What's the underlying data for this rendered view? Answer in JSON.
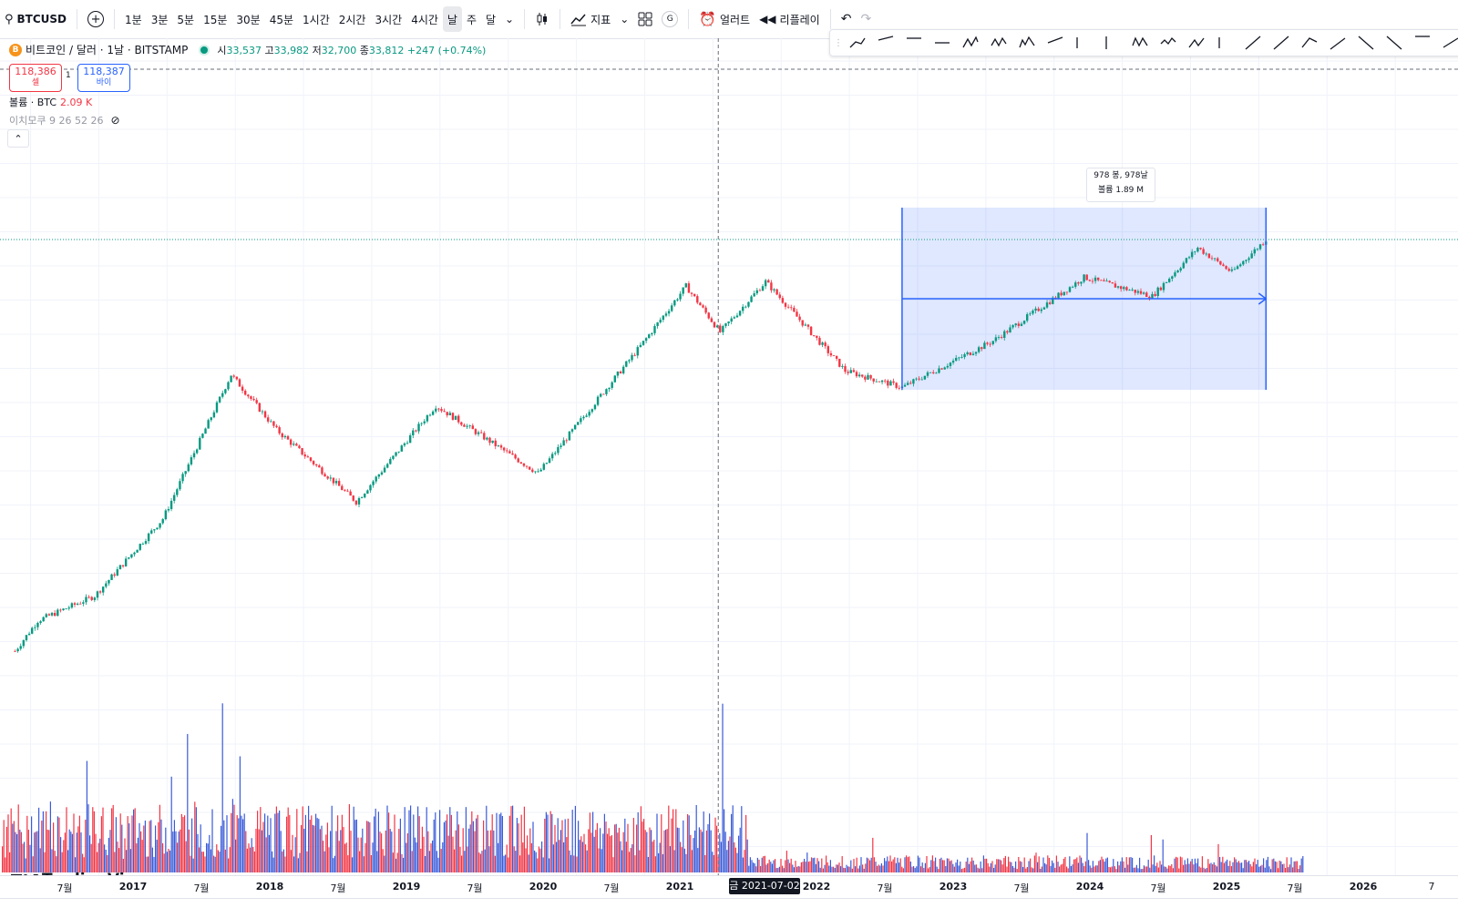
{
  "toolbar": {
    "symbol": "BTCUSD",
    "intervals": [
      "1분",
      "3분",
      "5분",
      "15분",
      "30분",
      "45분",
      "1시간",
      "2시간",
      "3시간",
      "4시간",
      "날",
      "주",
      "달"
    ],
    "active_interval": "날",
    "indicators": "지표",
    "alert": "얼러트",
    "replay": "리플레이"
  },
  "legend": {
    "title": "비트코인 / 달러 · 1날 · BITSTAMP",
    "o_label": "시",
    "o": "33,537",
    "h_label": "고",
    "h": "33,982",
    "l_label": "저",
    "l": "32,700",
    "c_label": "종",
    "c": "33,812",
    "change": "+247 (+0.74%)"
  },
  "trade": {
    "sell_price": "118,386",
    "sell_label": "셀",
    "spread": "1",
    "buy_price": "118,387",
    "buy_label": "바이"
  },
  "volume": {
    "label": "볼륨 · BTC",
    "value": "2.09 K"
  },
  "ichimoku": {
    "label": "이치모쿠 9 26 52 26"
  },
  "measure": {
    "line1": "978 봉, 978날",
    "line2": "볼륨 1.89 M"
  },
  "xaxis": {
    "labels": [
      "7월",
      "2017",
      "7월",
      "2018",
      "7월",
      "2019",
      "7월",
      "2020",
      "7월",
      "2021",
      "2022",
      "7월",
      "2023",
      "7월",
      "2024",
      "7월",
      "2025",
      "7월",
      "2026",
      "7"
    ],
    "crosshair": "금 2021-07-02"
  },
  "watermark": "TradingView",
  "colors": {
    "up": "#089981",
    "down": "#f23645",
    "accent": "#2962ff",
    "vol_up": "#3a5bd9",
    "vol_down": "#f23645"
  },
  "chart_data": {
    "type": "candlestick",
    "symbol": "BTCUSD",
    "interval": "1날",
    "x_range": [
      "2016-04",
      "2026-10"
    ],
    "y_scale": "log",
    "path_dates": [
      "2016-05",
      "2016-07",
      "2016-12",
      "2017-06",
      "2017-12",
      "2018-04",
      "2018-11",
      "2019-06",
      "2020-03",
      "2020-12",
      "2021-04",
      "2021-07",
      "2021-11",
      "2022-06",
      "2022-11",
      "2023-07",
      "2024-03",
      "2024-09",
      "2025-01",
      "2025-04",
      "2025-07"
    ],
    "path_prices": [
      450,
      680,
      950,
      2700,
      19000,
      9000,
      3400,
      12500,
      5000,
      28000,
      63000,
      33812,
      67000,
      20000,
      16000,
      30000,
      71000,
      55000,
      106000,
      76000,
      118386
    ],
    "measure": {
      "bars": 978,
      "days": 978,
      "volume": "1.89M",
      "start_date": "2022-11",
      "end_date": "2025-07"
    },
    "crosshair_date": "2021-07-02"
  }
}
